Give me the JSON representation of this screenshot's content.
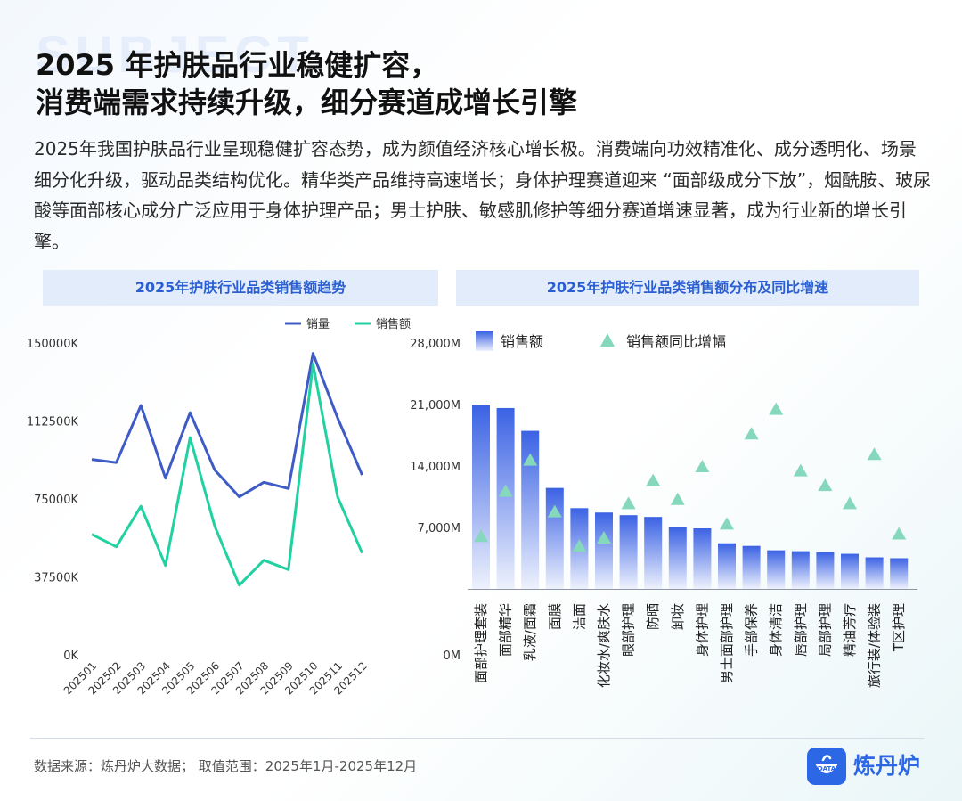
{
  "header": {
    "watermark": "SUBJECT",
    "title_line1": "2025 年护肤品行业稳健扩容，",
    "title_line2": "消费端需求持续升级，细分赛道成增长引擎",
    "intro": "2025年我国护肤品行业呈现稳健扩容态势，成为颜值经济核心增长极。消费端向功效精准化、成分透明化、场景细分化升级，驱动品类结构优化。精华类产品维持高速增长；身体护理赛道迎来 “面部级成分下放”，烟酰胺、玻尿酸等面部核心成分广泛应用于身体护理产品；男士护肤、敏感肌修护等细分赛道增速显著，成为行业新的增长引擎。"
  },
  "colors": {
    "sales_volume": "#3f5bc6",
    "sales_amount": "#22d1a1",
    "bar_top": "#3b62e4",
    "bar_bottom": "#eef2fd",
    "triangle": "#86d8bd",
    "panel_head_bg": "#e3ecfb",
    "panel_head_text": "#2b5fd1",
    "brand": "#2c67e6"
  },
  "chart_data": [
    {
      "type": "line",
      "title": "2025年护肤行业品类销售额趋势",
      "x": [
        "202501",
        "202502",
        "202503",
        "202504",
        "202505",
        "202506",
        "202507",
        "202508",
        "202509",
        "202510",
        "202511",
        "202512"
      ],
      "yticks": [
        "150000K",
        "112500K",
        "75000K",
        "37500K",
        "0K"
      ],
      "ylim": [
        0,
        150000
      ],
      "series": [
        {
          "name": "销量",
          "color": "#3f5bc6",
          "values": [
            94000,
            92500,
            120000,
            85000,
            116500,
            89000,
            76000,
            83000,
            80000,
            145000,
            114000,
            86500
          ]
        },
        {
          "name": "销售额",
          "color": "#22d1a1",
          "values": [
            58000,
            52000,
            71500,
            43000,
            104500,
            62000,
            33500,
            45500,
            41000,
            140000,
            76000,
            49000
          ]
        }
      ],
      "legend": "top-center"
    },
    {
      "type": "bar",
      "title": "2025年护肤行业品类销售额分布及同比增速",
      "categories": [
        "面部护理套装",
        "面部精华",
        "乳液/面霜",
        "面膜",
        "洁面",
        "化妆水/爽肤水",
        "眼部护理",
        "防晒",
        "卸妆",
        "身体护理",
        "男士面部护理",
        "手部保养",
        "身体清洁",
        "唇部护理",
        "局部护理",
        "精油芳疗",
        "旅行装/体验装",
        "T区护理"
      ],
      "yticks": [
        "28,000M",
        "21,000M",
        "14,000M",
        "7,000M",
        "0M"
      ],
      "ylim": [
        0,
        28000
      ],
      "series": [
        {
          "name": "销售额",
          "values": [
            20900,
            20600,
            18000,
            11500,
            9200,
            8700,
            8400,
            8200,
            7000,
            6900,
            5200,
            4900,
            4400,
            4300,
            4200,
            4000,
            3600,
            3500
          ]
        },
        {
          "name": "销售额同比增幅",
          "values": [
            6.5,
            12.0,
            15.8,
            9.5,
            5.3,
            6.3,
            10.5,
            13.3,
            11.0,
            15.0,
            8.0,
            19.0,
            22.0,
            14.5,
            12.7,
            10.5,
            16.5,
            6.8
          ]
        }
      ],
      "legend": "top-left"
    }
  ],
  "footer": {
    "source": "数据来源：炼丹炉大数据； 取值范围：2025年1月-2025年12月",
    "brand_name": "炼丹炉",
    "brand_icon": "data-pot-icon",
    "brand_icon_text": "DATA"
  }
}
